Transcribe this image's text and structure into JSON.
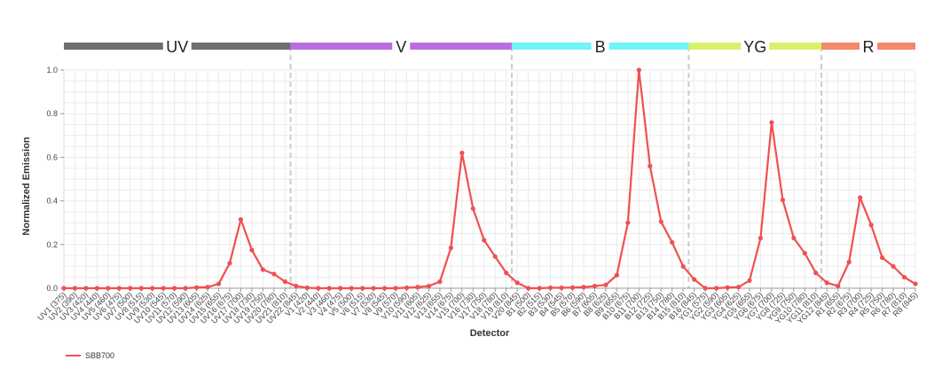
{
  "chart_data": {
    "type": "line",
    "xlabel": "Detector",
    "ylabel": "Normalized Emission",
    "ylim": [
      0,
      1.0
    ],
    "yticks": [
      "0.0",
      "0.2",
      "0.4",
      "0.6",
      "0.8",
      "1.0"
    ],
    "grid": true,
    "legend_position": "bottom-left",
    "bands": [
      {
        "label": "UV",
        "color": "#6e6e6e",
        "start": 0,
        "end": 21
      },
      {
        "label": "V",
        "color": "#b86ee0",
        "start": 21,
        "end": 41
      },
      {
        "label": "B",
        "color": "#6ff4f8",
        "start": 41,
        "end": 57
      },
      {
        "label": "YG",
        "color": "#d7f26a",
        "start": 57,
        "end": 69
      },
      {
        "label": "R",
        "color": "#f5876a",
        "start": 69,
        "end": 77
      }
    ],
    "categories": [
      "UV1 (375)",
      "UV2 (390)",
      "UV3 (420)",
      "UV4 (440)",
      "UV5 (460)",
      "UV6 (475)",
      "UV7 (500)",
      "UV8 (515)",
      "UV9 (530)",
      "UV10 (545)",
      "UV11 (570)",
      "UV12 (590)",
      "UV13 (605)",
      "UV14 (625)",
      "UV15 (655)",
      "UV16 (675)",
      "UV17 (700)",
      "UV18 (730)",
      "UV19 (750)",
      "UV20 (780)",
      "UV21 (810)",
      "UV22 (845)",
      "V1 (420)",
      "V2 (440)",
      "V3 (460)",
      "V4 (475)",
      "V5 (500)",
      "V6 (515)",
      "V7 (530)",
      "V8 (545)",
      "V9 (570)",
      "V10 (590)",
      "V11 (605)",
      "V12 (625)",
      "V13 (655)",
      "V14 (675)",
      "V15 (700)",
      "V16 (730)",
      "V17 (750)",
      "V18 (780)",
      "V19 (810)",
      "V20 (845)",
      "B1 (500)",
      "B2 (515)",
      "B3 (530)",
      "B4 (545)",
      "B5 (570)",
      "B6 (590)",
      "B7 (605)",
      "B8 (625)",
      "B9 (655)",
      "B10 (675)",
      "B11 (700)",
      "B12 (725)",
      "B13 (750)",
      "B14 (780)",
      "B15 (810)",
      "B16 (845)",
      "YG1 (575)",
      "YG2 (590)",
      "YG3 (605)",
      "YG4 (625)",
      "YG5 (655)",
      "YG6 (675)",
      "YG7 (700)",
      "YG8 (725)",
      "YG9 (750)",
      "YG10 (780)",
      "YG11 (810)",
      "YG12 (845)",
      "R1 (655)",
      "R2 (675)",
      "R3 (700)",
      "R4 (725)",
      "R5 (750)",
      "R6 (780)",
      "R7 (810)",
      "R8 (845)"
    ],
    "series": [
      {
        "name": "SBB700",
        "color": "#f05050",
        "values": [
          0,
          0,
          0,
          0,
          0,
          0,
          0,
          0,
          0,
          0,
          0,
          0,
          0.003,
          0.005,
          0.02,
          0.115,
          0.315,
          0.175,
          0.085,
          0.065,
          0.03,
          0.01,
          0.002,
          0,
          0,
          0,
          0,
          0,
          0,
          0,
          0,
          0.002,
          0.005,
          0.01,
          0.03,
          0.185,
          0.62,
          0.365,
          0.22,
          0.145,
          0.07,
          0.025,
          0,
          0,
          0.002,
          0.002,
          0.003,
          0.005,
          0.01,
          0.015,
          0.06,
          0.3,
          1.0,
          0.56,
          0.305,
          0.21,
          0.1,
          0.04,
          0,
          0,
          0.003,
          0.005,
          0.035,
          0.23,
          0.76,
          0.405,
          0.23,
          0.16,
          0.07,
          0.025,
          0.01,
          0.12,
          0.415,
          0.29,
          0.14,
          0.1,
          0.05,
          0.02
        ]
      }
    ]
  }
}
